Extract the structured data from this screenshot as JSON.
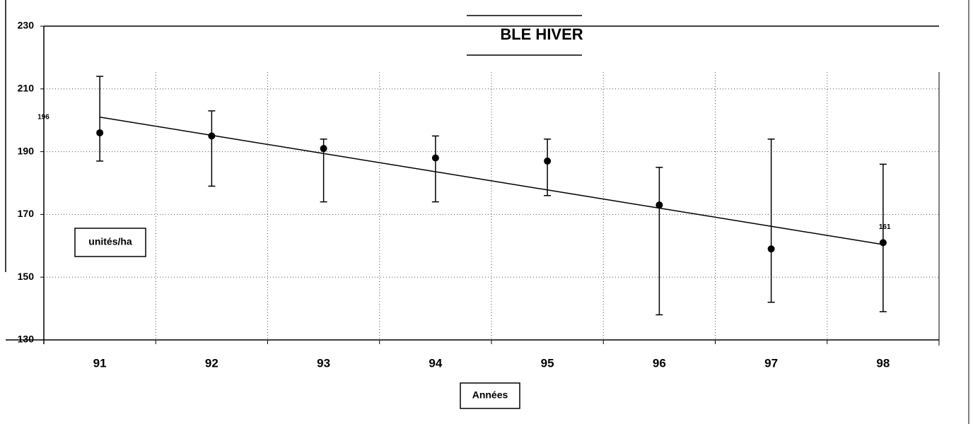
{
  "chart_data": {
    "type": "errorbar",
    "title": "BLE HIVER",
    "x_label": "Années",
    "y_label": "unités/ha",
    "categories": [
      "91",
      "92",
      "93",
      "94",
      "95",
      "96",
      "97",
      "98"
    ],
    "series": [
      {
        "values": [
          196,
          195,
          191,
          188,
          187,
          173,
          159,
          161
        ],
        "value_labels": [
          "196",
          null,
          null,
          null,
          null,
          null,
          null,
          "161"
        ],
        "upper": [
          214,
          203,
          194,
          195,
          194,
          185,
          194,
          186
        ],
        "lower": [
          187,
          179,
          174,
          174,
          176,
          138,
          142,
          139
        ],
        "color": "#000000"
      }
    ],
    "trend": {
      "values": [
        201,
        195.2,
        189.4,
        183.6,
        177.8,
        172,
        166.2,
        160.4
      ],
      "color": "#000000"
    },
    "ylim": [
      130,
      230
    ],
    "yticks": [
      130,
      150,
      170,
      190,
      210,
      230
    ],
    "grid": true
  }
}
